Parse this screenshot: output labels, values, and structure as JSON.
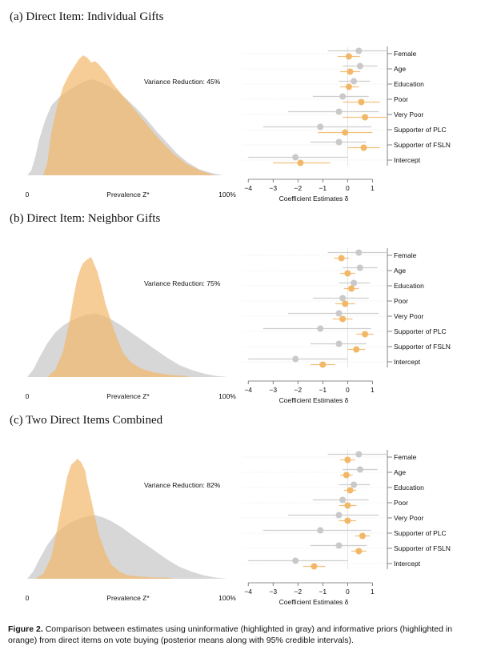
{
  "figure": {
    "caption_label": "Figure 2.",
    "caption_text": "Comparison between estimates using uninformative (highlighted in gray) and informative priors (highlighted in orange) from direct items on vote buying (posterior means along with 95% credible intervals)."
  },
  "colors": {
    "gray": "#c9c9c9",
    "orange": "#f2b869",
    "axis": "#555555"
  },
  "density_axis": {
    "xlabel": "Prevalence Z*",
    "ticks": [
      "0",
      "100%"
    ]
  },
  "coef_axis": {
    "xlabel": "Coefficient Estimates δ",
    "ticks": [
      "−4",
      "−3",
      "−2",
      "−1",
      "0",
      "1"
    ],
    "xlim": [
      -4.2,
      1.6
    ]
  },
  "variables": [
    "Female",
    "Age",
    "Education",
    "Poor",
    "Very Poor",
    "Supporter of PLC",
    "Supporter of FSLN",
    "Intercept"
  ],
  "chart_data": [
    {
      "type": "area",
      "panel": "(a)",
      "title": "Direct Item: Individual Gifts",
      "annotation": "Variance Reduction: 45%",
      "xlabel": "Prevalence Z*",
      "xlim": [
        0,
        1
      ],
      "series": [
        {
          "name": "uninformative",
          "color": "gray",
          "x": [
            0,
            0.02,
            0.04,
            0.06,
            0.09,
            0.12,
            0.16,
            0.2,
            0.24,
            0.28,
            0.32,
            0.36,
            0.4,
            0.45,
            0.5,
            0.55,
            0.6,
            0.65,
            0.7,
            0.75,
            0.8,
            0.86,
            0.92,
            0.98
          ],
          "y": [
            0,
            0.04,
            0.15,
            0.3,
            0.46,
            0.58,
            0.65,
            0.7,
            0.74,
            0.78,
            0.8,
            0.78,
            0.75,
            0.7,
            0.63,
            0.55,
            0.46,
            0.36,
            0.27,
            0.18,
            0.11,
            0.05,
            0.02,
            0
          ]
        },
        {
          "name": "informative",
          "color": "orange",
          "x": [
            0.08,
            0.1,
            0.12,
            0.15,
            0.18,
            0.21,
            0.24,
            0.26,
            0.28,
            0.3,
            0.32,
            0.34,
            0.36,
            0.38,
            0.4,
            0.43,
            0.46,
            0.5,
            0.55,
            0.6,
            0.66,
            0.73,
            0.8,
            0.88,
            0.94
          ],
          "y": [
            0,
            0.1,
            0.35,
            0.58,
            0.74,
            0.84,
            0.92,
            0.97,
            1,
            0.98,
            0.94,
            0.95,
            0.92,
            0.88,
            0.84,
            0.76,
            0.7,
            0.62,
            0.52,
            0.42,
            0.3,
            0.18,
            0.09,
            0.03,
            0
          ]
        }
      ]
    },
    {
      "type": "scatter",
      "panel": "(a)",
      "xlabel": "Coefficient Estimates δ",
      "categories": [
        "Female",
        "Age",
        "Education",
        "Poor",
        "Very Poor",
        "Supporter of PLC",
        "Supporter of FSLN",
        "Intercept"
      ],
      "series": [
        {
          "name": "uninformative",
          "color": "gray",
          "mean": [
            0.45,
            0.5,
            0.25,
            -0.2,
            -0.35,
            -1.1,
            -0.35,
            -2.1
          ],
          "lower": [
            -0.8,
            -0.2,
            -0.35,
            -1.4,
            -2.4,
            -3.4,
            -1.5,
            -4.0
          ],
          "upper": [
            1.6,
            1.2,
            0.9,
            0.85,
            1.25,
            0.95,
            0.75,
            0.0
          ]
        },
        {
          "name": "informative",
          "color": "orange",
          "mean": [
            0.05,
            0.1,
            0.05,
            0.55,
            0.7,
            -0.1,
            0.65,
            -1.9
          ],
          "lower": [
            -0.4,
            -0.3,
            -0.3,
            -0.2,
            -0.2,
            -1.2,
            0.0,
            -3.0
          ],
          "upper": [
            0.5,
            0.5,
            0.45,
            1.3,
            1.6,
            1.0,
            1.3,
            -0.7
          ]
        }
      ]
    },
    {
      "type": "area",
      "panel": "(b)",
      "title": "Direct Item: Neighbor Gifts",
      "annotation": "Variance Reduction: 75%",
      "xlabel": "Prevalence Z*",
      "xlim": [
        0,
        1
      ],
      "series": [
        {
          "name": "uninformative",
          "color": "gray",
          "x": [
            0,
            0.03,
            0.06,
            0.1,
            0.14,
            0.18,
            0.22,
            0.26,
            0.3,
            0.34,
            0.38,
            0.42,
            0.47,
            0.52,
            0.58,
            0.64,
            0.7,
            0.76,
            0.82,
            0.88,
            0.94,
            1.0
          ],
          "y": [
            0,
            0.06,
            0.16,
            0.28,
            0.37,
            0.43,
            0.47,
            0.5,
            0.52,
            0.53,
            0.51,
            0.48,
            0.43,
            0.37,
            0.3,
            0.23,
            0.16,
            0.1,
            0.06,
            0.03,
            0.01,
            0
          ]
        },
        {
          "name": "informative",
          "color": "orange",
          "x": [
            0.1,
            0.14,
            0.18,
            0.21,
            0.23,
            0.25,
            0.27,
            0.28,
            0.3,
            0.32,
            0.33,
            0.35,
            0.37,
            0.39,
            0.42,
            0.45,
            0.48,
            0.52,
            0.57,
            0.63,
            0.7,
            0.78,
            0.82
          ],
          "y": [
            0,
            0.06,
            0.22,
            0.45,
            0.65,
            0.82,
            0.92,
            0.95,
            0.98,
            1,
            0.96,
            0.88,
            0.76,
            0.62,
            0.46,
            0.32,
            0.2,
            0.12,
            0.07,
            0.04,
            0.02,
            0.01,
            0
          ]
        }
      ]
    },
    {
      "type": "scatter",
      "panel": "(b)",
      "xlabel": "Coefficient Estimates δ",
      "categories": [
        "Female",
        "Age",
        "Education",
        "Poor",
        "Very Poor",
        "Supporter of PLC",
        "Supporter of FSLN",
        "Intercept"
      ],
      "series": [
        {
          "name": "uninformative",
          "color": "gray",
          "mean": [
            0.45,
            0.5,
            0.25,
            -0.2,
            -0.35,
            -1.1,
            -0.35,
            -2.1
          ],
          "lower": [
            -0.8,
            -0.2,
            -0.35,
            -1.4,
            -2.4,
            -3.4,
            -1.5,
            -4.0
          ],
          "upper": [
            1.6,
            1.2,
            0.9,
            0.85,
            1.25,
            0.95,
            0.75,
            0.0
          ]
        },
        {
          "name": "informative",
          "color": "orange",
          "mean": [
            -0.25,
            0.0,
            0.15,
            -0.1,
            -0.2,
            0.7,
            0.35,
            -1.0
          ],
          "lower": [
            -0.55,
            -0.3,
            -0.15,
            -0.5,
            -0.6,
            0.35,
            0.0,
            -1.5
          ],
          "upper": [
            0.05,
            0.3,
            0.45,
            0.3,
            0.2,
            1.05,
            0.7,
            -0.5
          ]
        }
      ]
    },
    {
      "type": "area",
      "panel": "(c)",
      "title": "Two Direct Items Combined",
      "annotation": "Variance Reduction: 82%",
      "xlabel": "Prevalence Z*",
      "xlim": [
        0,
        1
      ],
      "series": [
        {
          "name": "uninformative",
          "color": "gray",
          "x": [
            0,
            0.03,
            0.06,
            0.1,
            0.14,
            0.18,
            0.22,
            0.26,
            0.3,
            0.34,
            0.38,
            0.42,
            0.47,
            0.52,
            0.58,
            0.64,
            0.7,
            0.76,
            0.82,
            0.88,
            0.94,
            1.0
          ],
          "y": [
            0,
            0.06,
            0.16,
            0.28,
            0.37,
            0.43,
            0.47,
            0.5,
            0.52,
            0.53,
            0.51,
            0.48,
            0.43,
            0.37,
            0.3,
            0.23,
            0.16,
            0.1,
            0.06,
            0.03,
            0.01,
            0
          ]
        },
        {
          "name": "informative",
          "color": "orange",
          "x": [
            0.04,
            0.08,
            0.12,
            0.15,
            0.18,
            0.2,
            0.22,
            0.24,
            0.25,
            0.27,
            0.29,
            0.3,
            0.32,
            0.34,
            0.36,
            0.39,
            0.42,
            0.46,
            0.5,
            0.56,
            0.63,
            0.7,
            0.74
          ],
          "y": [
            0,
            0.04,
            0.18,
            0.42,
            0.68,
            0.85,
            0.95,
            0.98,
            1,
            0.97,
            0.9,
            0.8,
            0.66,
            0.5,
            0.36,
            0.22,
            0.12,
            0.06,
            0.03,
            0.02,
            0.01,
            0.01,
            0
          ]
        }
      ]
    },
    {
      "type": "scatter",
      "panel": "(c)",
      "xlabel": "Coefficient Estimates δ",
      "categories": [
        "Female",
        "Age",
        "Education",
        "Poor",
        "Very Poor",
        "Supporter of PLC",
        "Supporter of FSLN",
        "Intercept"
      ],
      "series": [
        {
          "name": "uninformative",
          "color": "gray",
          "mean": [
            0.45,
            0.5,
            0.25,
            -0.2,
            -0.35,
            -1.1,
            -0.35,
            -2.1
          ],
          "lower": [
            -0.8,
            -0.2,
            -0.35,
            -1.4,
            -2.4,
            -3.4,
            -1.5,
            -4.0
          ],
          "upper": [
            1.6,
            1.2,
            0.9,
            0.85,
            1.25,
            0.95,
            0.75,
            0.0
          ]
        },
        {
          "name": "informative",
          "color": "orange",
          "mean": [
            0.0,
            -0.05,
            0.1,
            0.0,
            0.0,
            0.6,
            0.45,
            -1.35
          ],
          "lower": [
            -0.3,
            -0.3,
            -0.15,
            -0.35,
            -0.35,
            0.3,
            0.15,
            -1.8
          ],
          "upper": [
            0.3,
            0.2,
            0.35,
            0.35,
            0.35,
            0.9,
            0.75,
            -0.9
          ]
        }
      ]
    }
  ]
}
